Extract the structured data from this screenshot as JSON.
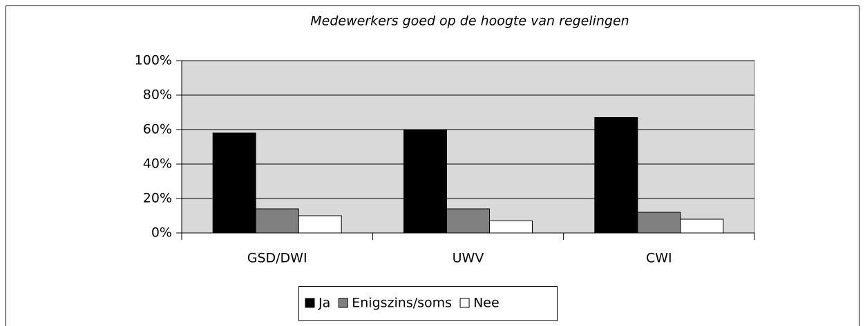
{
  "chart_data": {
    "type": "bar",
    "title": "Medewerkers goed op de hoogte van regelingen",
    "categories": [
      "GSD/DWI",
      "UWV",
      "CWI"
    ],
    "series": [
      {
        "name": "Ja",
        "color": "#000000",
        "values": [
          58,
          60,
          67
        ]
      },
      {
        "name": "Enigszins/soms",
        "color": "#808080",
        "values": [
          14,
          14,
          12
        ]
      },
      {
        "name": "Nee",
        "color": "#ffffff",
        "values": [
          10,
          7,
          8
        ]
      }
    ],
    "ylim": [
      0,
      100
    ],
    "yticks": [
      {
        "value": 0,
        "label": "0%"
      },
      {
        "value": 20,
        "label": "20%"
      },
      {
        "value": 40,
        "label": "40%"
      },
      {
        "value": 60,
        "label": "60%"
      },
      {
        "value": 80,
        "label": "80%"
      },
      {
        "value": 100,
        "label": "100%"
      }
    ],
    "grid": true,
    "legend": "bottom",
    "plot_background": "#d9d9d9"
  }
}
